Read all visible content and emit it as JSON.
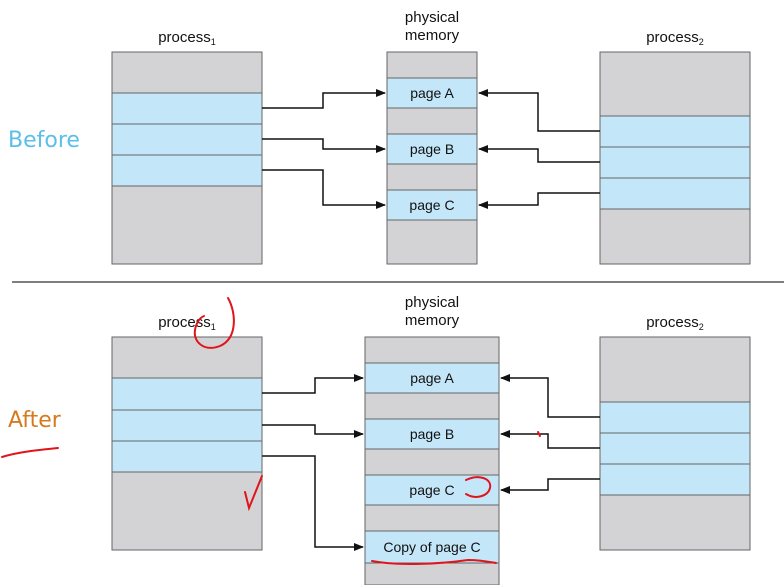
{
  "colors": {
    "block_gray": "#d3d3d6",
    "page_blue": "#c3e6f8",
    "before_label": "#5bbfe8",
    "after_label": "#d67a1e",
    "annotation_red": "#e0141a"
  },
  "before": {
    "label": "Before",
    "process1": {
      "name": "process",
      "subscript": "1"
    },
    "memory": {
      "line1": "physical",
      "line2": "memory"
    },
    "process2": {
      "name": "process",
      "subscript": "2"
    },
    "pages": [
      "page A",
      "page B",
      "page C"
    ]
  },
  "after": {
    "label": "After",
    "process1": {
      "name": "process",
      "subscript": "1"
    },
    "memory": {
      "line1": "physical",
      "line2": "memory"
    },
    "process2": {
      "name": "process",
      "subscript": "2"
    },
    "pages": [
      "page A",
      "page B",
      "page C",
      "Copy of page C"
    ]
  }
}
